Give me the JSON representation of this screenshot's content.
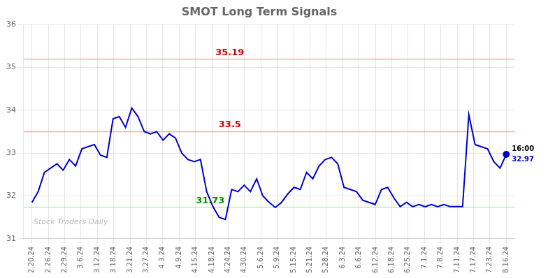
{
  "chart_data": {
    "type": "line",
    "title": "SMOT Long Term Signals",
    "x": [
      0,
      0.381579,
      0.763158,
      1.144737,
      1.526316,
      1.907895,
      2.289474,
      2.671053,
      3.052632,
      3.434211,
      3.815789,
      4.197368,
      4.578947,
      4.960526,
      5.342105,
      5.723684,
      6.105263,
      6.486842,
      6.868421,
      7.25,
      7.631579,
      8.013158,
      8.394737,
      8.776316,
      9.157895,
      9.539474,
      9.921053,
      10.302632,
      10.684211,
      11.065789,
      11.447368,
      11.828947,
      12.210526,
      12.592105,
      12.973684,
      13.355263,
      13.736842,
      14.118421,
      14.5,
      14.881579,
      15.263158,
      15.644737,
      16.026316,
      16.407895,
      16.789474,
      17.171053,
      17.552632,
      17.934211,
      18.315789,
      18.697368,
      19.078947,
      19.460526,
      19.842105,
      20.223684,
      20.605263,
      20.986842,
      21.368421,
      21.75,
      22.131579,
      22.513158,
      22.894737,
      23.276316,
      23.657895,
      24.039474,
      24.421053,
      24.802632,
      25.184211,
      25.565789,
      25.947368,
      26.328947,
      26.710526,
      27.092105,
      27.473684,
      27.855263,
      28.236842,
      28.618421,
      29
    ],
    "values": [
      31.85,
      32.1,
      32.55,
      32.65,
      32.75,
      32.6,
      32.85,
      32.7,
      33.1,
      33.15,
      33.2,
      32.95,
      32.9,
      33.8,
      33.85,
      33.6,
      34.05,
      33.85,
      33.5,
      33.45,
      33.5,
      33.3,
      33.45,
      33.35,
      33.0,
      32.85,
      32.8,
      32.85,
      32.1,
      31.75,
      31.5,
      31.45,
      32.15,
      32.1,
      32.25,
      32.1,
      32.4,
      32.0,
      31.85,
      31.73,
      31.85,
      32.05,
      32.2,
      32.15,
      32.55,
      32.4,
      32.7,
      32.85,
      32.9,
      32.75,
      32.2,
      32.15,
      32.1,
      31.9,
      31.85,
      31.8,
      32.15,
      32.2,
      31.95,
      31.75,
      31.85,
      31.75,
      31.8,
      31.75,
      31.8,
      31.75,
      31.8,
      31.75,
      31.75,
      31.75,
      33.9,
      33.2,
      33.15,
      33.1,
      32.8,
      32.65,
      32.97
    ],
    "color": "#0000cc",
    "xlim": [
      -0.5,
      29.5
    ],
    "xticks": [
      {
        "value": 0,
        "label": "2.20.24"
      },
      {
        "value": 1,
        "label": "2.26.24"
      },
      {
        "value": 2,
        "label": "2.29.24"
      },
      {
        "value": 3,
        "label": "3.6.24"
      },
      {
        "value": 4,
        "label": "3.12.24"
      },
      {
        "value": 5,
        "label": "3.18.24"
      },
      {
        "value": 6,
        "label": "3.21.24"
      },
      {
        "value": 7,
        "label": "3.27.24"
      },
      {
        "value": 8,
        "label": "4.3.24"
      },
      {
        "value": 9,
        "label": "4.9.24"
      },
      {
        "value": 10,
        "label": "4.15.24"
      },
      {
        "value": 11,
        "label": "4.18.24"
      },
      {
        "value": 12,
        "label": "4.24.24"
      },
      {
        "value": 13,
        "label": "4.30.24"
      },
      {
        "value": 14,
        "label": "5.6.24"
      },
      {
        "value": 15,
        "label": "5.9.24"
      },
      {
        "value": 16,
        "label": "5.15.24"
      },
      {
        "value": 17,
        "label": "5.21.24"
      },
      {
        "value": 18,
        "label": "5.28.24"
      },
      {
        "value": 19,
        "label": "6.3.24"
      },
      {
        "value": 20,
        "label": "6.6.24"
      },
      {
        "value": 21,
        "label": "6.12.24"
      },
      {
        "value": 22,
        "label": "6.18.24"
      },
      {
        "value": 23,
        "label": "6.25.24"
      },
      {
        "value": 24,
        "label": "7.1.24"
      },
      {
        "value": 25,
        "label": "7.8.24"
      },
      {
        "value": 26,
        "label": "7.11.24"
      },
      {
        "value": 27,
        "label": "7.17.24"
      },
      {
        "value": 28,
        "label": "7.23.24"
      },
      {
        "value": 29,
        "label": "8.16.24"
      }
    ],
    "ylim": [
      31.0,
      36.0
    ],
    "yticks": [
      31,
      32,
      33,
      34,
      35,
      36
    ],
    "grid": true,
    "reference_lines": [
      {
        "value": 35.19,
        "color": "#ffaaaa",
        "label_color": "#cc0000"
      },
      {
        "value": 33.5,
        "color": "#ffaaaa",
        "label_color": "#cc0000"
      },
      {
        "value": 31.73,
        "color": "#aaffaa",
        "label_color": "#008800"
      }
    ],
    "annotations": [
      {
        "text": "16:00",
        "x": 29,
        "y": 32.97,
        "color": "#000000"
      },
      {
        "text": "32.97",
        "x": 29,
        "y": 32.97,
        "color": "#0000cc"
      },
      {
        "text": "Stock Traders Daily",
        "color": "#bbbbbb"
      }
    ]
  }
}
